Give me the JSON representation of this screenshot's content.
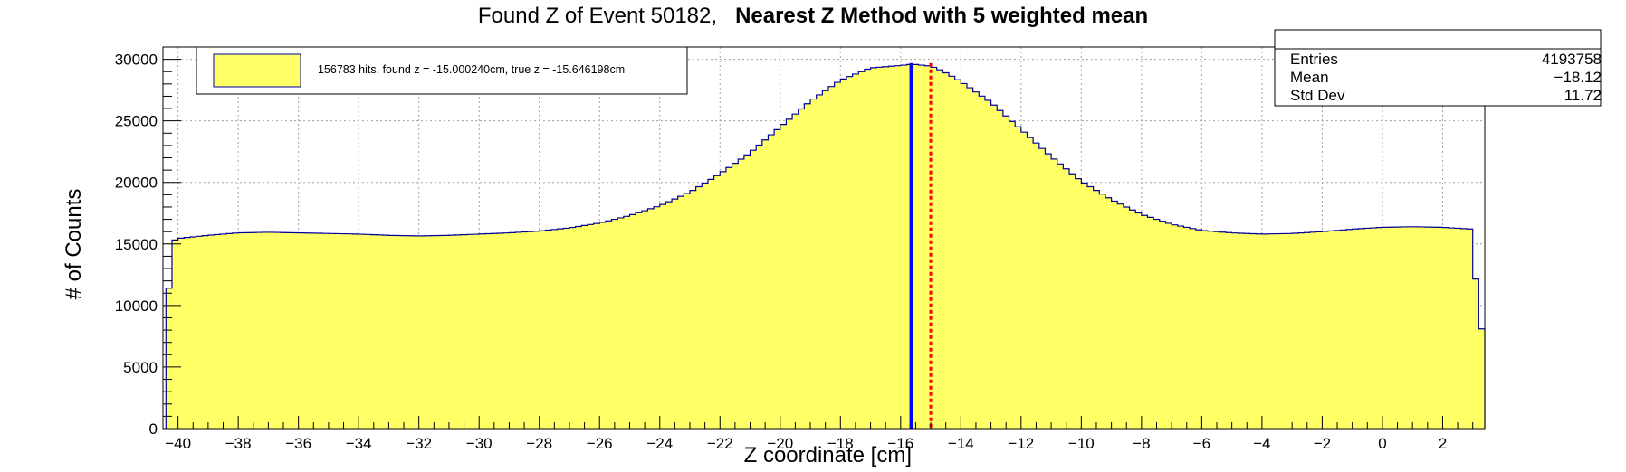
{
  "title": {
    "part1": "Found Z of Event 50182,",
    "part2": "Nearest Z Method with 5 weighted mean"
  },
  "stats": {
    "entries_label": "Entries",
    "entries_value": "4193758",
    "mean_label": "Mean",
    "mean_value": "−18.12",
    "stddev_label": "Std Dev",
    "stddev_value": "11.72"
  },
  "legend": {
    "entry": "156783 hits, found z = -15.000240cm, true z = -15.646198cm"
  },
  "colors": {
    "fill": "#ffff66",
    "outline": "#000099",
    "true_z_line": "#0000ff",
    "found_z_line": "#ff0000",
    "grid": "#a0a0a0"
  },
  "chart_data": {
    "type": "bar",
    "title": "Found Z of Event 50182,   Nearest Z Method with 5 weighted mean",
    "xlabel": "Z coordinate [cm]",
    "ylabel": "# of Counts",
    "xlim": [
      -40.5,
      3.4
    ],
    "ylim": [
      0,
      31000
    ],
    "x_ticks": [
      -40,
      -38,
      -36,
      -34,
      -32,
      -30,
      -28,
      -26,
      -24,
      -22,
      -20,
      -18,
      -16,
      -14,
      -12,
      -10,
      -8,
      -6,
      -4,
      -2,
      0,
      2
    ],
    "y_ticks": [
      0,
      5000,
      10000,
      15000,
      20000,
      25000,
      30000
    ],
    "grid": true,
    "legend_position": "top-left",
    "series": [
      {
        "bin_width": 0.2,
        "x_start": -40.4,
        "profile_x": [
          -40.4,
          -40.2,
          -40.0,
          -39.0,
          -38.0,
          -37.0,
          -36.0,
          -35.0,
          -34.0,
          -33.0,
          -32.0,
          -31.0,
          -30.0,
          -29.0,
          -28.0,
          -27.0,
          -26.0,
          -25.0,
          -24.0,
          -23.0,
          -22.0,
          -21.0,
          -20.0,
          -19.0,
          -18.0,
          -17.0,
          -16.0,
          -15.6,
          -15.0,
          -14.6,
          -14.0,
          -13.0,
          -12.0,
          -11.0,
          -10.0,
          -9.0,
          -8.0,
          -7.0,
          -6.0,
          -5.0,
          -4.0,
          -3.0,
          -2.0,
          -1.0,
          0.0,
          1.0,
          2.0,
          3.0,
          3.2,
          3.4
        ],
        "profile_y": [
          7600,
          15200,
          15450,
          15700,
          15900,
          15950,
          15900,
          15850,
          15800,
          15700,
          15650,
          15700,
          15800,
          15900,
          16050,
          16300,
          16700,
          17300,
          18100,
          19200,
          20700,
          22400,
          24500,
          26600,
          28300,
          29300,
          29500,
          29600,
          29450,
          29050,
          28200,
          26500,
          24300,
          22100,
          20100,
          18600,
          17400,
          16600,
          16100,
          15900,
          15800,
          15850,
          16000,
          16200,
          16350,
          16400,
          16350,
          16200,
          8100,
          8100
        ]
      }
    ],
    "markers": [
      {
        "name": "true z",
        "x": -15.646198
      },
      {
        "name": "found z",
        "x": -15.00024
      }
    ],
    "stats": {
      "entries": 4193758,
      "mean": -18.12,
      "std_dev": 11.72
    },
    "legend_entries": [
      "156783 hits, found z = -15.000240cm, true z = -15.646198cm"
    ]
  }
}
